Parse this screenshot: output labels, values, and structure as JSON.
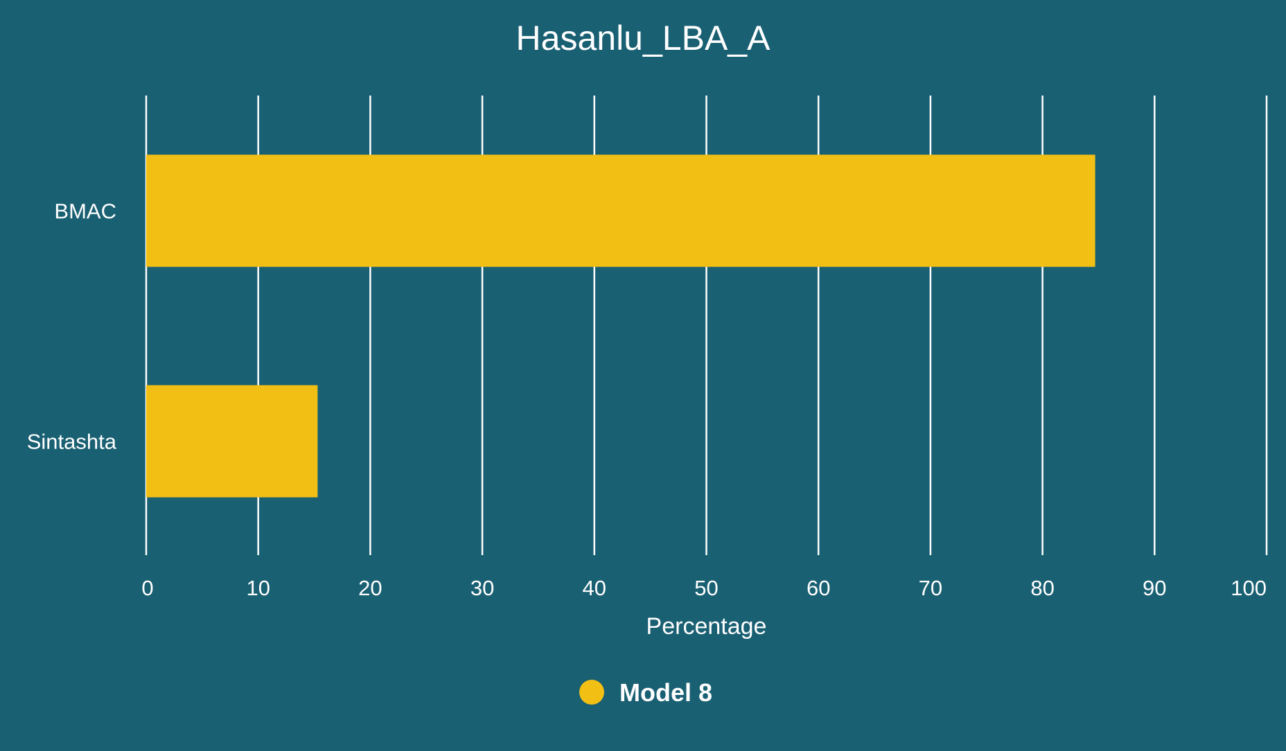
{
  "chart_data": {
    "type": "bar",
    "orientation": "horizontal",
    "title": "Hasanlu_LBA_A",
    "xlabel": "Percentage",
    "ylabel": "",
    "categories": [
      "BMAC",
      "Sintashta"
    ],
    "series": [
      {
        "name": "Model 8",
        "values": [
          84.7,
          15.3
        ],
        "color": "#f2c014"
      }
    ],
    "xlim": [
      0,
      100
    ],
    "xticks": [
      0,
      10,
      20,
      30,
      40,
      50,
      60,
      70,
      80,
      90,
      100
    ],
    "grid": "vertical",
    "legend_position": "bottom-center",
    "background_color": "#1a6073",
    "text_color": "#ffffff"
  }
}
